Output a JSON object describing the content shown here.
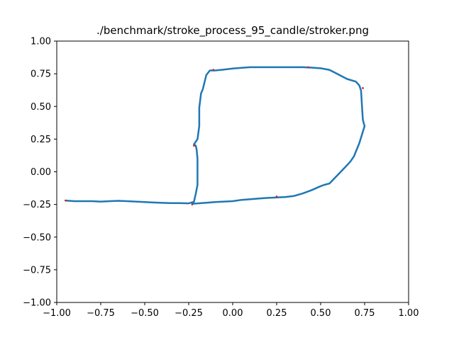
{
  "chart_data": {
    "type": "line",
    "title": "./benchmark/stroke_process_95_candle/stroker.png",
    "xlabel": "",
    "ylabel": "",
    "xlim": [
      -1.0,
      1.0
    ],
    "ylim": [
      -1.0,
      1.0
    ],
    "x_ticks": [
      -1.0,
      -0.75,
      -0.5,
      -0.25,
      0.0,
      0.25,
      0.5,
      0.75,
      1.0
    ],
    "x_tick_labels": [
      "−1.00",
      "−0.75",
      "−0.50",
      "−0.25",
      "0.00",
      "0.25",
      "0.50",
      "0.75",
      "1.00"
    ],
    "y_ticks": [
      1.0,
      0.75,
      0.5,
      0.25,
      0.0,
      -0.25,
      -0.5,
      -0.75,
      -1.0
    ],
    "y_tick_labels": [
      "1.00",
      "0.75",
      "0.50",
      "0.25",
      "0.00",
      "−0.25",
      "−0.50",
      "−0.75",
      "−1.00"
    ],
    "grid": false,
    "series": [
      {
        "color": "#1f77b4",
        "x": [
          -0.95,
          -0.9,
          -0.85,
          -0.8,
          -0.75,
          -0.7,
          -0.65,
          -0.6,
          -0.55,
          -0.5,
          -0.45,
          -0.4,
          -0.35,
          -0.3,
          -0.25,
          -0.22,
          -0.21,
          -0.2,
          -0.2,
          -0.2,
          -0.205,
          -0.21,
          -0.22,
          -0.2,
          -0.19,
          -0.19,
          -0.18,
          -0.17,
          -0.15,
          -0.13,
          -0.12,
          -0.1,
          -0.05,
          0.0,
          0.05,
          0.1,
          0.15,
          0.2,
          0.25,
          0.3,
          0.35,
          0.4,
          0.45,
          0.5,
          0.55,
          0.6,
          0.65,
          0.7,
          0.72,
          0.73,
          0.735,
          0.74,
          0.745,
          0.75,
          0.72,
          0.69,
          0.67,
          0.65,
          0.6,
          0.55,
          0.52,
          0.5,
          0.45,
          0.4,
          0.35,
          0.3,
          0.25,
          0.2,
          0.15,
          0.1,
          0.05,
          0.0,
          -0.05,
          -0.1,
          -0.15,
          -0.2,
          -0.23
        ],
        "y": [
          -0.22,
          -0.225,
          -0.225,
          -0.225,
          -0.228,
          -0.225,
          -0.222,
          -0.225,
          -0.228,
          -0.232,
          -0.235,
          -0.238,
          -0.24,
          -0.24,
          -0.242,
          -0.23,
          -0.17,
          -0.1,
          0.0,
          0.1,
          0.17,
          0.2,
          0.21,
          0.25,
          0.35,
          0.49,
          0.6,
          0.63,
          0.74,
          0.775,
          0.775,
          0.775,
          0.782,
          0.79,
          0.795,
          0.8,
          0.8,
          0.8,
          0.8,
          0.8,
          0.8,
          0.8,
          0.797,
          0.792,
          0.78,
          0.745,
          0.71,
          0.69,
          0.66,
          0.62,
          0.5,
          0.4,
          0.37,
          0.35,
          0.22,
          0.12,
          0.08,
          0.05,
          -0.02,
          -0.09,
          -0.1,
          -0.11,
          -0.14,
          -0.165,
          -0.185,
          -0.193,
          -0.196,
          -0.2,
          -0.205,
          -0.21,
          -0.215,
          -0.225,
          -0.228,
          -0.232,
          -0.237,
          -0.242,
          -0.245
        ]
      }
    ],
    "markers": {
      "color": "#d62728",
      "x": [
        -0.95,
        -0.11,
        -0.22,
        0.74,
        0.43,
        0.25,
        -0.23
      ],
      "y": [
        -0.22,
        0.78,
        0.2,
        0.64,
        0.8,
        -0.19,
        -0.25
      ]
    }
  }
}
